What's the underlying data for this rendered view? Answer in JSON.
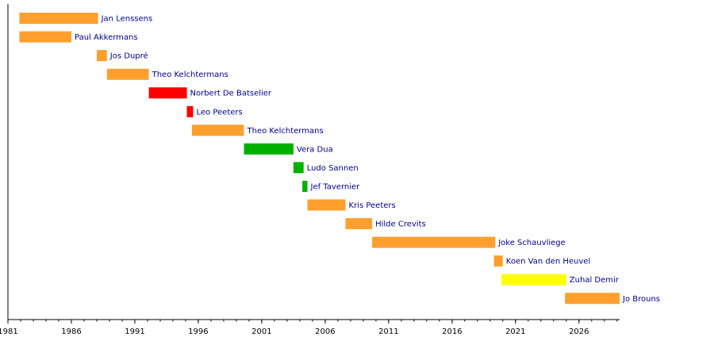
{
  "chart_data": {
    "type": "timeline",
    "title": "",
    "xlabel": "",
    "ylabel": "",
    "xlim": [
      1981,
      2029.2
    ],
    "grid": false,
    "x_ticks": [
      1981,
      1986,
      1991,
      1996,
      2001,
      2006,
      2011,
      2016,
      2021,
      2026
    ],
    "colors": {
      "orange": "#ff9f2e",
      "red": "#ff0000",
      "green": "#00b000",
      "yellow": "#ffff00",
      "label": "#00008b",
      "axis": "#000000"
    },
    "bars": [
      {
        "name": "Jan Lenssens",
        "start": 1981.9,
        "end": 1988.1,
        "color": "orange"
      },
      {
        "name": "Paul Akkermans",
        "start": 1981.9,
        "end": 1986.0,
        "color": "orange"
      },
      {
        "name": "Jos Dupré",
        "start": 1988.0,
        "end": 1988.8,
        "color": "orange"
      },
      {
        "name": "Theo Kelchtermans",
        "start": 1988.8,
        "end": 1992.1,
        "color": "orange"
      },
      {
        "name": "Norbert De Batselier",
        "start": 1992.1,
        "end": 1995.1,
        "color": "red"
      },
      {
        "name": "Leo Peeters",
        "start": 1995.1,
        "end": 1995.6,
        "color": "red"
      },
      {
        "name": "Theo Kelchtermans",
        "start": 1995.5,
        "end": 1999.6,
        "color": "orange"
      },
      {
        "name": "Vera Dua",
        "start": 1999.6,
        "end": 2003.5,
        "color": "green"
      },
      {
        "name": "Ludo Sannen",
        "start": 2003.5,
        "end": 2004.3,
        "color": "green"
      },
      {
        "name": "Jef Tavernier",
        "start": 2004.2,
        "end": 2004.6,
        "color": "green"
      },
      {
        "name": "Kris Peeters",
        "start": 2004.6,
        "end": 2007.6,
        "color": "orange"
      },
      {
        "name": "Hilde Crevits",
        "start": 2007.6,
        "end": 2009.7,
        "color": "orange"
      },
      {
        "name": "Joke Schauvliege",
        "start": 2009.7,
        "end": 2019.4,
        "color": "orange"
      },
      {
        "name": "Koen Van den Heuvel",
        "start": 2019.3,
        "end": 2020.0,
        "color": "orange"
      },
      {
        "name": "Zuhal Demir",
        "start": 2019.9,
        "end": 2025.0,
        "color": "yellow"
      },
      {
        "name": "Jo Brouns",
        "start": 2024.9,
        "end": 2029.2,
        "color": "orange"
      }
    ]
  }
}
